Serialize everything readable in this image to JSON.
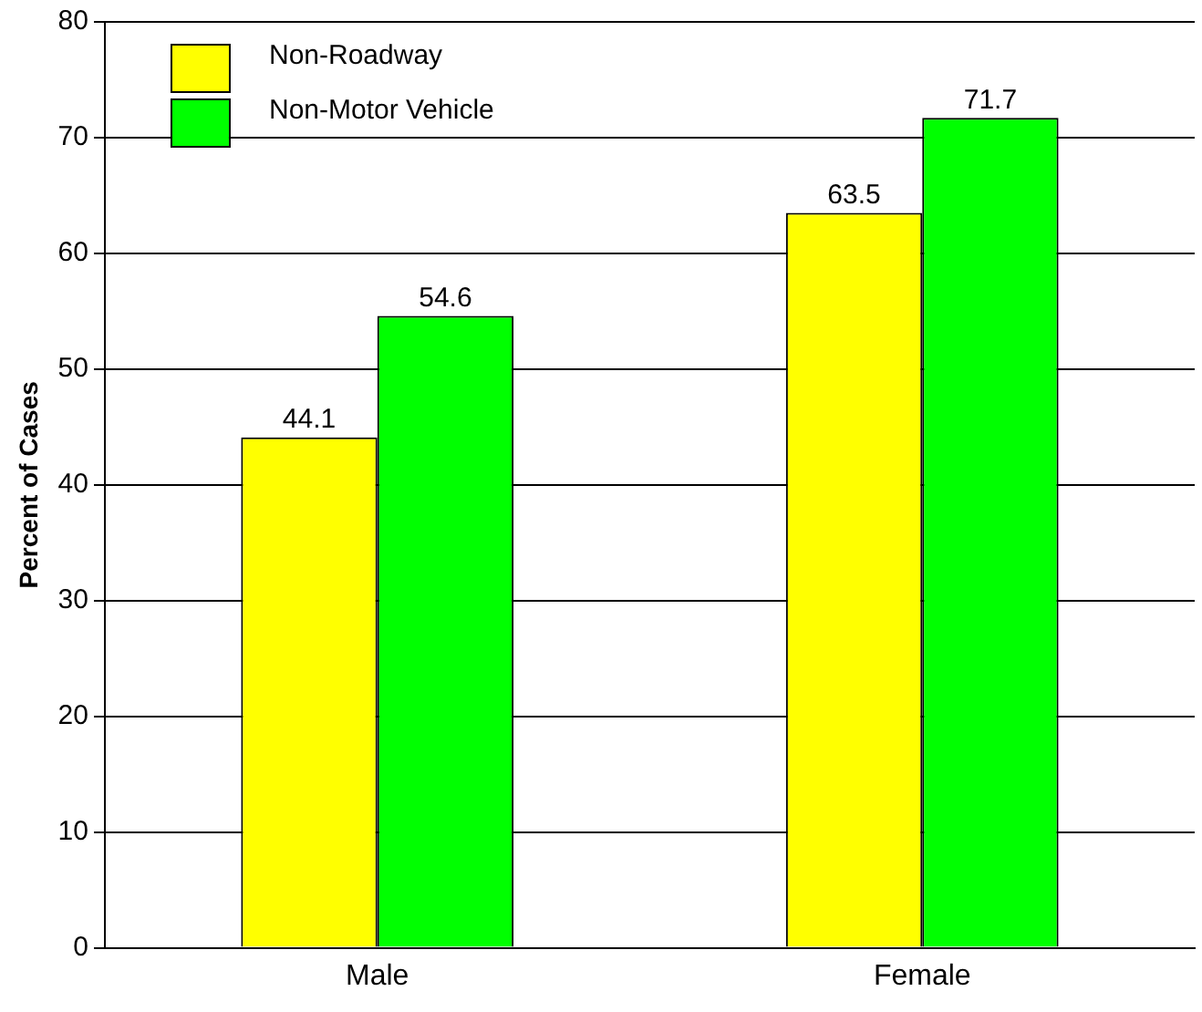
{
  "chart_data": {
    "type": "bar",
    "ylabel": "Percent of Cases",
    "categories": [
      "Male",
      "Female"
    ],
    "series": [
      {
        "name": "Non-Roadway",
        "color": "#ffff00",
        "values": [
          44.1,
          63.5
        ]
      },
      {
        "name": "Non-Motor Vehicle",
        "color": "#00ff00",
        "values": [
          54.6,
          71.7
        ]
      }
    ],
    "ylim": [
      0,
      80
    ],
    "yticks": [
      0,
      10,
      20,
      30,
      40,
      50,
      60,
      70,
      80
    ],
    "grid": "y",
    "legend": "top left",
    "data_labels": true
  }
}
